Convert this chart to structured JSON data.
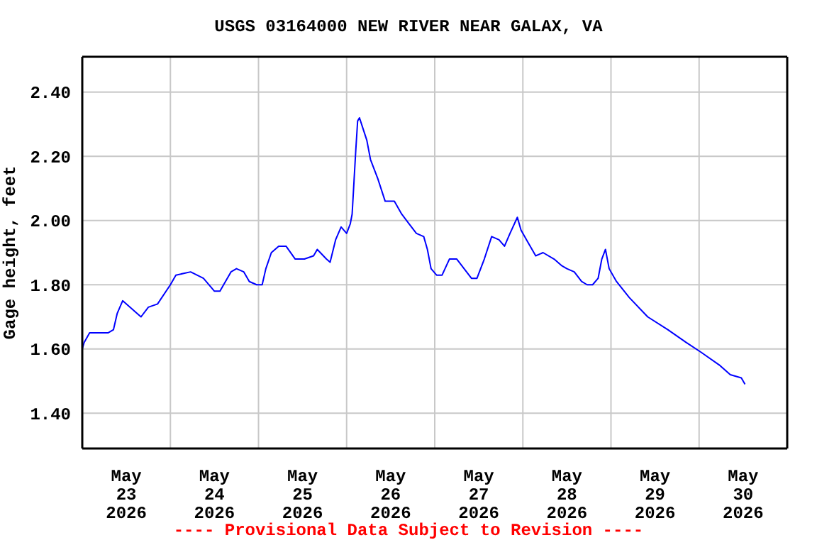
{
  "chart_data": {
    "type": "line",
    "title": "USGS 03164000 NEW RIVER NEAR GALAX, VA",
    "ylabel": "Gage height, feet",
    "annotations": [
      "---- Provisional Data Subject to Revision ----"
    ],
    "x": [
      "2026-05-23T00:00",
      "2026-05-23T00:30",
      "2026-05-23T02:00",
      "2026-05-23T07:00",
      "2026-05-23T08:30",
      "2026-05-23T09:30",
      "2026-05-23T11:00",
      "2026-05-23T15:00",
      "2026-05-23T16:00",
      "2026-05-23T18:00",
      "2026-05-23T20:30",
      "2026-05-24T00:00",
      "2026-05-24T01:30",
      "2026-05-24T05:30",
      "2026-05-24T09:00",
      "2026-05-24T12:00",
      "2026-05-24T13:30",
      "2026-05-24T16:30",
      "2026-05-24T18:00",
      "2026-05-24T20:00",
      "2026-05-24T21:30",
      "2026-05-24T23:30",
      "2026-05-25T01:00",
      "2026-05-25T02:00",
      "2026-05-25T03:30",
      "2026-05-25T05:30",
      "2026-05-25T07:30",
      "2026-05-25T10:00",
      "2026-05-25T12:30",
      "2026-05-25T15:00",
      "2026-05-25T16:00",
      "2026-05-25T18:30",
      "2026-05-25T19:30",
      "2026-05-25T21:00",
      "2026-05-25T22:30",
      "2026-05-26T00:00",
      "2026-05-26T01:00",
      "2026-05-26T01:30",
      "2026-05-26T02:30",
      "2026-05-26T03:00",
      "2026-05-26T03:30",
      "2026-05-26T05:30",
      "2026-05-26T06:30",
      "2026-05-26T08:30",
      "2026-05-26T10:30",
      "2026-05-26T13:00",
      "2026-05-26T15:00",
      "2026-05-26T17:00",
      "2026-05-26T19:00",
      "2026-05-26T21:00",
      "2026-05-26T22:00",
      "2026-05-26T23:00",
      "2026-05-27T00:30",
      "2026-05-27T02:00",
      "2026-05-27T04:00",
      "2026-05-27T06:00",
      "2026-05-27T08:00",
      "2026-05-27T10:00",
      "2026-05-27T11:30",
      "2026-05-27T13:30",
      "2026-05-27T15:30",
      "2026-05-27T17:30",
      "2026-05-27T19:00",
      "2026-05-27T20:30",
      "2026-05-27T22:30",
      "2026-05-27T23:30",
      "2026-05-28T01:00",
      "2026-05-28T03:30",
      "2026-05-28T05:30",
      "2026-05-28T08:30",
      "2026-05-28T10:30",
      "2026-05-28T12:00",
      "2026-05-28T14:00",
      "2026-05-28T16:00",
      "2026-05-28T17:30",
      "2026-05-28T19:00",
      "2026-05-28T20:30",
      "2026-05-28T21:30",
      "2026-05-28T22:30",
      "2026-05-28T23:30",
      "2026-05-29T01:30",
      "2026-05-29T05:00",
      "2026-05-29T10:00",
      "2026-05-29T15:30",
      "2026-05-29T20:30",
      "2026-05-30T00:30",
      "2026-05-30T05:30",
      "2026-05-30T08:30",
      "2026-05-30T11:30",
      "2026-05-30T12:30"
    ],
    "series": [
      {
        "color": "#0000ff",
        "values": [
          1.6,
          1.62,
          1.65,
          1.65,
          1.66,
          1.71,
          1.75,
          1.71,
          1.7,
          1.73,
          1.74,
          1.8,
          1.83,
          1.84,
          1.82,
          1.78,
          1.78,
          1.84,
          1.85,
          1.84,
          1.81,
          1.8,
          1.8,
          1.85,
          1.9,
          1.92,
          1.92,
          1.88,
          1.88,
          1.89,
          1.91,
          1.88,
          1.87,
          1.94,
          1.98,
          1.96,
          1.99,
          2.02,
          2.22,
          2.31,
          2.32,
          2.25,
          2.19,
          2.13,
          2.06,
          2.06,
          2.02,
          1.99,
          1.96,
          1.95,
          1.91,
          1.85,
          1.83,
          1.83,
          1.88,
          1.88,
          1.85,
          1.82,
          1.82,
          1.88,
          1.95,
          1.94,
          1.92,
          1.96,
          2.01,
          1.97,
          1.94,
          1.89,
          1.9,
          1.88,
          1.86,
          1.85,
          1.84,
          1.81,
          1.8,
          1.8,
          1.82,
          1.88,
          1.91,
          1.85,
          1.81,
          1.76,
          1.7,
          1.66,
          1.62,
          1.59,
          1.55,
          1.52,
          1.51,
          1.49
        ]
      }
    ],
    "xlim": [
      "2026-05-23T00:00",
      "2026-05-31T00:00"
    ],
    "xticks": [
      {
        "value": "2026-05-23T12:00",
        "label": "May 23 2026"
      },
      {
        "value": "2026-05-24T12:00",
        "label": "May 24 2026"
      },
      {
        "value": "2026-05-25T12:00",
        "label": "May 25 2026"
      },
      {
        "value": "2026-05-26T12:00",
        "label": "May 26 2026"
      },
      {
        "value": "2026-05-27T12:00",
        "label": "May 27 2026"
      },
      {
        "value": "2026-05-28T12:00",
        "label": "May 28 2026"
      },
      {
        "value": "2026-05-29T12:00",
        "label": "May 29 2026"
      },
      {
        "value": "2026-05-30T12:00",
        "label": "May 30 2026"
      },
      {
        "value": "2026-05-24T00:00",
        "label": null
      },
      {
        "value": "2026-05-25T00:00",
        "label": null
      },
      {
        "value": "2026-05-26T00:00",
        "label": null
      },
      {
        "value": "2026-05-27T00:00",
        "label": null
      },
      {
        "value": "2026-05-28T00:00",
        "label": null
      },
      {
        "value": "2026-05-29T00:00",
        "label": null
      },
      {
        "value": "2026-05-30T00:00",
        "label": null
      }
    ],
    "ylim": [
      1.29,
      2.51
    ],
    "yticks": [
      {
        "value": 1.4,
        "label": "1.40"
      },
      {
        "value": 1.6,
        "label": "1.60"
      },
      {
        "value": 1.8,
        "label": "1.80"
      },
      {
        "value": 2.0,
        "label": "2.00"
      },
      {
        "value": 2.2,
        "label": "2.20"
      },
      {
        "value": 2.4,
        "label": "2.40"
      }
    ],
    "grid": true,
    "marker": "none",
    "line_style": "solid"
  }
}
